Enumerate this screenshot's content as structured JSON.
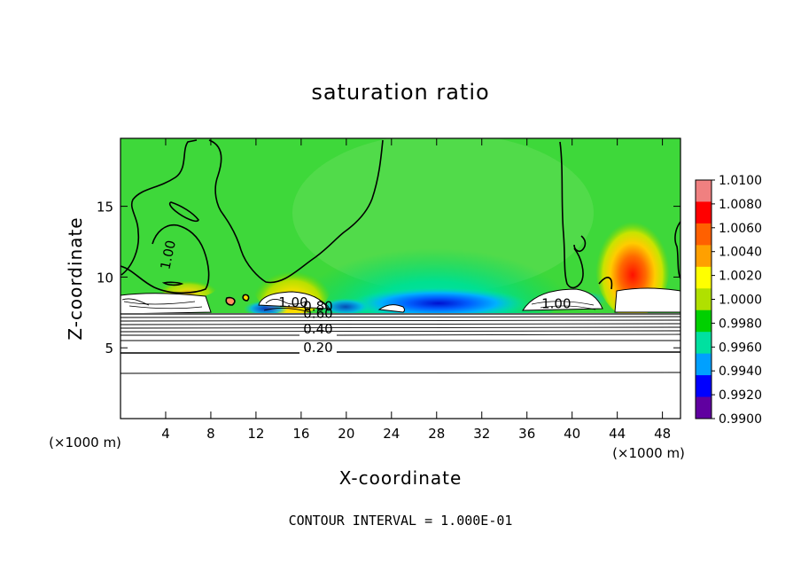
{
  "chart_data": {
    "type": "heatmap",
    "title": "saturation ratio",
    "xlabel": "X-coordinate",
    "ylabel": "Z-coordinate",
    "x_unit": "(×1000 m)",
    "z_unit": "(×1000 m)",
    "x_ticks": [
      4,
      8,
      12,
      16,
      20,
      24,
      28,
      32,
      36,
      40,
      44,
      48
    ],
    "y_ticks": [
      5,
      10,
      15
    ],
    "xlim": [
      0,
      49.6
    ],
    "ylim": [
      0,
      19.8
    ],
    "grid": false,
    "colorbar": {
      "placement": "right",
      "levels": [
        "1.0100",
        "1.0080",
        "1.0060",
        "1.0040",
        "1.0020",
        "1.0000",
        "0.9980",
        "0.9960",
        "0.9940",
        "0.9920",
        "0.9900"
      ],
      "colors": [
        "#f08080",
        "#ff0000",
        "#ff6000",
        "#ffa000",
        "#ffff00",
        "#b0e000",
        "#00d000",
        "#00e0a0",
        "#00a0ff",
        "#0000ff",
        "#6000a0"
      ]
    },
    "contour_labels": [
      {
        "text": "1.00",
        "x": 4.6,
        "z": 11.5,
        "rotate": -78
      },
      {
        "text": "1.00",
        "x": 15.3,
        "z": 7.9
      },
      {
        "text": "0.80",
        "x": 17.5,
        "z": 7.6
      },
      {
        "text": "0.60",
        "x": 17.5,
        "z": 7.1
      },
      {
        "text": "0.40",
        "x": 17.5,
        "z": 6.0
      },
      {
        "text": "0.20",
        "x": 17.5,
        "z": 4.7
      },
      {
        "text": "1.00",
        "x": 38.6,
        "z": 7.8
      }
    ],
    "footer": "CONTOUR INTERVAL = 1.000E-01"
  }
}
